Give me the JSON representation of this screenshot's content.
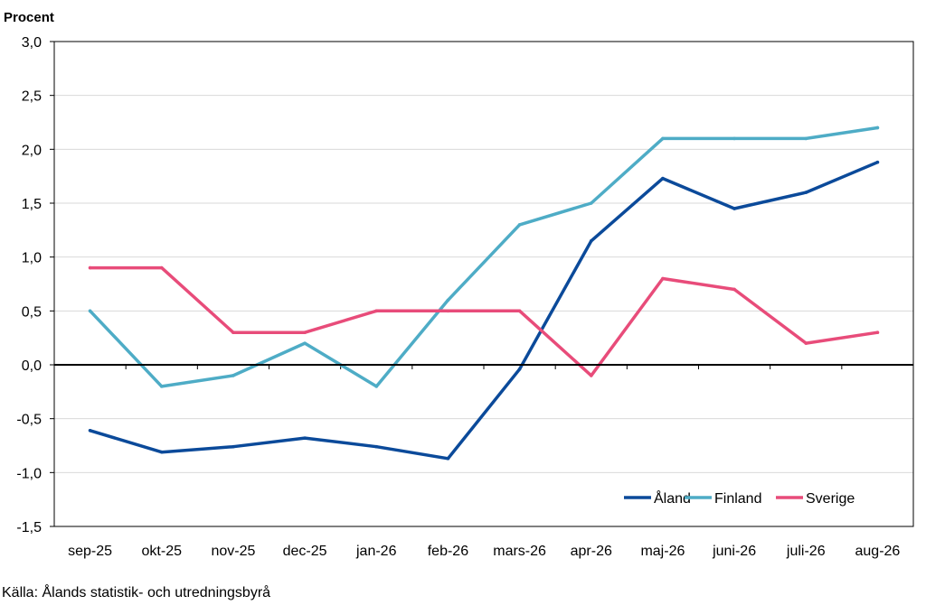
{
  "chart_data": {
    "type": "line",
    "ylabel": "Procent",
    "ylim": [
      -1.5,
      3.0
    ],
    "yticks": [
      3.0,
      2.5,
      2.0,
      1.5,
      1.0,
      0.5,
      0.0,
      -0.5,
      -1.0,
      -1.5
    ],
    "ytick_labels": [
      "3,0",
      "2,5",
      "2,0",
      "1,5",
      "1,0",
      "0,5",
      "0,0",
      "-0,5",
      "-1,0",
      "-1,5"
    ],
    "categories": [
      "sep-25",
      "okt-25",
      "nov-25",
      "dec-25",
      "jan-26",
      "feb-26",
      "mars-26",
      "apr-26",
      "maj-26",
      "juni-26",
      "juli-26",
      "aug-26"
    ],
    "grid": true,
    "legend_position": "bottom-right",
    "series": [
      {
        "name": "Åland",
        "color": "#0b4a9a",
        "values": [
          -0.61,
          -0.81,
          -0.76,
          -0.68,
          -0.76,
          -0.87,
          -0.04,
          1.15,
          1.73,
          1.45,
          1.6,
          1.88
        ]
      },
      {
        "name": "Finland",
        "color": "#4eacc6",
        "values": [
          0.5,
          -0.2,
          -0.1,
          0.2,
          -0.2,
          0.6,
          1.3,
          1.5,
          2.1,
          2.1,
          2.1,
          2.2
        ]
      },
      {
        "name": "Sverige",
        "color": "#e84c7a",
        "values": [
          0.9,
          0.9,
          0.3,
          0.3,
          0.5,
          0.5,
          0.5,
          -0.1,
          0.8,
          0.7,
          0.2,
          0.3
        ]
      }
    ]
  },
  "source": "Källa: Ålands statistik- och utredningsbyrå"
}
